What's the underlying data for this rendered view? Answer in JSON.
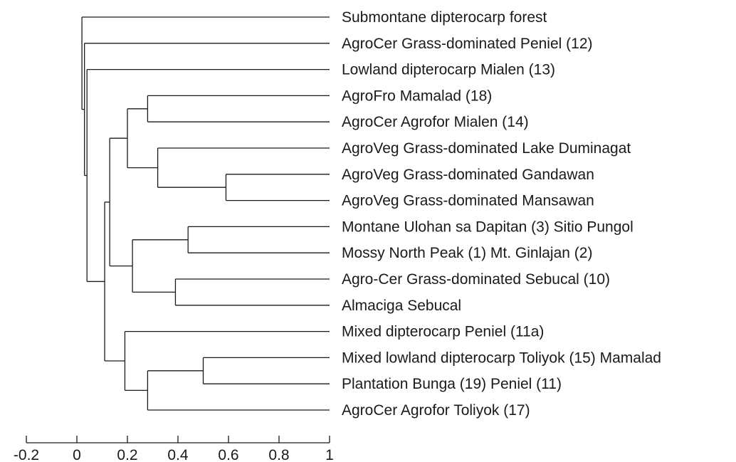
{
  "chart_data": {
    "type": "dendrogram",
    "title": "",
    "xlabel": "",
    "ylabel": "",
    "xlim": [
      -0.2,
      1
    ],
    "x_ticks": [
      -0.2,
      0,
      0.2,
      0.4,
      0.6,
      0.8,
      1
    ],
    "x_tick_labels": [
      "-0.2",
      "0",
      "0.2",
      "0.4",
      "0.6",
      "0.8",
      "1"
    ],
    "leaves": [
      "Submontane dipterocarp forest",
      "AgroCer Grass-dominated Peniel (12)",
      "Lowland dipterocarp Mialen (13)",
      "AgroFro Mamalad (18)",
      "AgroCer Agrofor Mialen (14)",
      "AgroVeg Grass-dominated Lake Duminagat",
      "AgroVeg Grass-dominated Gandawan",
      "AgroVeg Grass-dominated Mansawan",
      "Montane Ulohan sa Dapitan (3) Sitio Pungol",
      "Mossy North Peak (1) Mt. Ginlajan (2)",
      "Agro-Cer Grass-dominated Sebucal (10)",
      "Almaciga Sebucal",
      "Mixed dipterocarp Peniel (11a)",
      "Mixed lowland dipterocarp Toliyok (15) Mamalad",
      "Plantation Bunga (19) Peniel (11)",
      "AgroCer Agrofor Toliyok (17)"
    ],
    "merges": [
      {
        "id": "n1",
        "children": [
          "L3",
          "L4"
        ],
        "height": 0.28
      },
      {
        "id": "n2",
        "children": [
          "L6",
          "L7"
        ],
        "height": 0.59
      },
      {
        "id": "n3",
        "children": [
          "L5",
          "n2"
        ],
        "height": 0.32
      },
      {
        "id": "n4",
        "children": [
          "n1",
          "n3"
        ],
        "height": 0.2
      },
      {
        "id": "n5",
        "children": [
          "L8",
          "L9"
        ],
        "height": 0.44
      },
      {
        "id": "n6",
        "children": [
          "L10",
          "L11"
        ],
        "height": 0.39
      },
      {
        "id": "n7",
        "children": [
          "n5",
          "n6"
        ],
        "height": 0.22
      },
      {
        "id": "n8",
        "children": [
          "n4",
          "n7"
        ],
        "height": 0.13
      },
      {
        "id": "n9",
        "children": [
          "L13",
          "L14"
        ],
        "height": 0.5
      },
      {
        "id": "n10",
        "children": [
          "n9",
          "L15"
        ],
        "height": 0.28
      },
      {
        "id": "n11",
        "children": [
          "L12",
          "n10"
        ],
        "height": 0.19
      },
      {
        "id": "n12",
        "children": [
          "n8",
          "n11"
        ],
        "height": 0.11
      },
      {
        "id": "n13",
        "children": [
          "L2",
          "n12"
        ],
        "height": 0.04
      },
      {
        "id": "n14",
        "children": [
          "L1",
          "n13"
        ],
        "height": 0.03
      },
      {
        "id": "n15",
        "children": [
          "L0",
          "n14"
        ],
        "height": 0.02
      }
    ]
  }
}
